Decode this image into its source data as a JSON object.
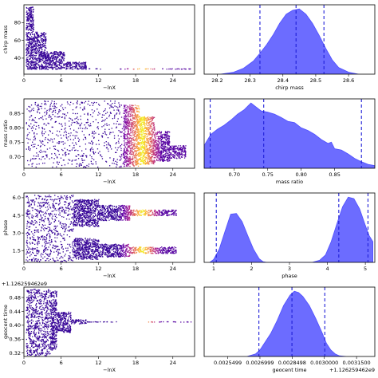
{
  "chart_data": [
    {
      "type": "scatter",
      "row": 0,
      "col": 0,
      "xlabel": "−lnX",
      "ylabel": "chirp mass",
      "xlim": [
        0,
        27.5
      ],
      "ylim": [
        22,
        100
      ],
      "xticks": [
        0,
        6,
        12,
        18,
        24
      ],
      "yticks": [
        40,
        60,
        80
      ],
      "ytick_labels": [
        "40",
        "60",
        "80"
      ],
      "offset_text": "",
      "trace": {
        "bands": [
          {
            "x0": 0.3,
            "x1": 1.5,
            "y0": 28,
            "y1": 98
          },
          {
            "x0": 1.5,
            "x1": 3.5,
            "y0": 28,
            "y1": 70
          },
          {
            "x0": 3.5,
            "x1": 6.5,
            "y0": 28,
            "y1": 48
          },
          {
            "x0": 6.5,
            "x1": 10,
            "y0": 28,
            "y1": 36
          },
          {
            "x0": 10,
            "x1": 27,
            "y0": 28.2,
            "y1": 28.7
          }
        ]
      }
    },
    {
      "type": "area",
      "row": 0,
      "col": 1,
      "xlabel": "chirp mass",
      "ylabel": "",
      "xlim": [
        28.16,
        28.68
      ],
      "xticks": [
        28.2,
        28.3,
        28.4,
        28.5,
        28.6
      ],
      "xtick_labels": [
        "28.2",
        "28.3",
        "28.4",
        "28.5",
        "28.6"
      ],
      "offset_text": "",
      "kde": {
        "x": [
          28.21,
          28.25,
          28.28,
          28.31,
          28.33,
          28.35,
          28.37,
          28.39,
          28.41,
          28.43,
          28.45,
          28.47,
          28.49,
          28.51,
          28.53,
          28.55,
          28.57,
          28.6,
          28.63
        ],
        "y": [
          0.0,
          0.03,
          0.09,
          0.2,
          0.32,
          0.45,
          0.6,
          0.78,
          0.92,
          0.98,
          1.0,
          0.92,
          0.78,
          0.6,
          0.4,
          0.22,
          0.1,
          0.03,
          0.0
        ]
      },
      "quantiles": [
        28.33,
        28.44,
        28.525
      ]
    },
    {
      "type": "scatter",
      "row": 1,
      "col": 0,
      "xlabel": "−lnX",
      "ylabel": "mass ratio",
      "xlim": [
        0,
        27.5
      ],
      "ylim": [
        0.66,
        0.9
      ],
      "xticks": [
        0,
        6,
        12,
        18,
        24
      ],
      "yticks": [
        0.7,
        0.75,
        0.8,
        0.85
      ],
      "ytick_labels": [
        "0.70",
        "0.75",
        "0.80",
        "0.85"
      ],
      "offset_text": "",
      "trace": {
        "bands": [
          {
            "x0": 0.3,
            "x1": 16,
            "y0": 0.665,
            "y1": 0.895
          },
          {
            "x0": 16,
            "x1": 18.5,
            "y0": 0.668,
            "y1": 0.88
          },
          {
            "x0": 18.5,
            "x1": 21,
            "y0": 0.675,
            "y1": 0.84
          },
          {
            "x0": 21,
            "x1": 23.5,
            "y0": 0.685,
            "y1": 0.79
          },
          {
            "x0": 23.5,
            "x1": 26,
            "y0": 0.695,
            "y1": 0.74
          }
        ]
      }
    },
    {
      "type": "area",
      "row": 1,
      "col": 1,
      "xlabel": "mass ratio",
      "ylabel": "",
      "xlim": [
        0.655,
        0.91
      ],
      "xticks": [
        0.7,
        0.75,
        0.8,
        0.85
      ],
      "xtick_labels": [
        "0.70",
        "0.75",
        "0.80",
        "0.85"
      ],
      "offset_text": "",
      "kde": {
        "x": [
          0.655,
          0.665,
          0.675,
          0.685,
          0.695,
          0.705,
          0.715,
          0.72,
          0.725,
          0.73,
          0.74,
          0.75,
          0.76,
          0.77,
          0.78,
          0.79,
          0.8,
          0.81,
          0.82,
          0.83,
          0.84,
          0.845,
          0.85,
          0.86,
          0.87,
          0.88,
          0.89,
          0.9,
          0.91
        ],
        "y": [
          0.35,
          0.52,
          0.6,
          0.66,
          0.74,
          0.83,
          0.9,
          0.95,
          1.0,
          0.96,
          0.88,
          0.86,
          0.83,
          0.78,
          0.72,
          0.7,
          0.62,
          0.58,
          0.52,
          0.44,
          0.38,
          0.4,
          0.3,
          0.28,
          0.22,
          0.15,
          0.1,
          0.06,
          0.04
        ]
      },
      "quantiles": [
        0.664,
        0.744,
        0.89
      ]
    },
    {
      "type": "scatter",
      "row": 2,
      "col": 0,
      "xlabel": "−lnX",
      "ylabel": "phase",
      "xlim": [
        0,
        27.5
      ],
      "ylim": [
        0.5,
        6.4
      ],
      "xticks": [
        0,
        6,
        12,
        18,
        24
      ],
      "yticks": [
        1.5,
        3.0,
        4.5,
        6.0
      ],
      "ytick_labels": [
        "1.5",
        "3.0",
        "4.5",
        "6.0"
      ],
      "offset_text": "",
      "trace": {
        "bands": [
          {
            "x0": 0.3,
            "x1": 8,
            "y0": 0.6,
            "y1": 6.25
          },
          {
            "x0": 8,
            "x1": 12,
            "y0": 0.8,
            "y1": 2.6
          },
          {
            "x0": 8,
            "x1": 12,
            "y0": 3.6,
            "y1": 5.9
          },
          {
            "x0": 12,
            "x1": 17,
            "y0": 1.0,
            "y1": 2.1
          },
          {
            "x0": 12,
            "x1": 17,
            "y0": 4.1,
            "y1": 5.4
          },
          {
            "x0": 17,
            "x1": 24.5,
            "y0": 1.3,
            "y1": 1.85
          },
          {
            "x0": 17,
            "x1": 24.5,
            "y0": 4.5,
            "y1": 5.0
          }
        ]
      }
    },
    {
      "type": "area",
      "row": 2,
      "col": 1,
      "xlabel": "phase",
      "ylabel": "",
      "xlim": [
        0.75,
        5.25
      ],
      "xticks": [
        1,
        2,
        3,
        4,
        5
      ],
      "xtick_labels": [
        "1",
        "2",
        "3",
        "4",
        "5"
      ],
      "offset_text": "",
      "kde": {
        "x": [
          0.9,
          1.0,
          1.15,
          1.3,
          1.45,
          1.6,
          1.75,
          1.9,
          2.05,
          2.2,
          2.3,
          2.4,
          3.6,
          3.8,
          3.95,
          4.1,
          4.25,
          4.4,
          4.55,
          4.7,
          4.85,
          5.0,
          5.1,
          5.2
        ],
        "y": [
          0.0,
          0.04,
          0.18,
          0.42,
          0.65,
          0.66,
          0.55,
          0.36,
          0.18,
          0.05,
          0.01,
          0.0,
          0.0,
          0.03,
          0.1,
          0.28,
          0.52,
          0.75,
          0.88,
          0.86,
          0.72,
          0.5,
          0.36,
          0.28
        ]
      },
      "quantiles": [
        1.07,
        4.3,
        5.07
      ]
    },
    {
      "type": "scatter",
      "row": 3,
      "col": 0,
      "xlabel": "−lnX",
      "ylabel": "geocent time",
      "xlim": [
        0,
        27.5
      ],
      "ylim": [
        0.31,
        0.51
      ],
      "xticks": [
        0,
        6,
        12,
        18,
        24
      ],
      "yticks": [
        0.32,
        0.36,
        0.4,
        0.44,
        0.48
      ],
      "ytick_labels": [
        "0.32",
        "0.36",
        "0.40",
        "0.44",
        "0.48"
      ],
      "offset_text": "+1.126259462e9",
      "trace": {
        "bands": [
          {
            "x0": 0.3,
            "x1": 4.2,
            "y0": 0.312,
            "y1": 0.505
          },
          {
            "x0": 4.2,
            "x1": 5.2,
            "y0": 0.33,
            "y1": 0.5
          },
          {
            "x0": 5.2,
            "x1": 7.5,
            "y0": 0.38,
            "y1": 0.44
          },
          {
            "x0": 7.5,
            "x1": 10,
            "y0": 0.405,
            "y1": 0.418
          },
          {
            "x0": 10,
            "x1": 27,
            "y0": 0.4105,
            "y1": 0.4115
          }
        ]
      }
    },
    {
      "type": "area",
      "row": 3,
      "col": 1,
      "xlabel": "geocent time",
      "ylabel": "",
      "xlim": [
        0.00244,
        0.003235
      ],
      "xticks": [
        0.0025499,
        0.0026999,
        0.0028498,
        0.003,
        0.00315
      ],
      "xtick_labels": [
        "0.0025499",
        "0.0026999",
        "0.0028498",
        "0.0030000",
        "0.0031500"
      ],
      "offset_text": "+1.126259462e9",
      "kde": {
        "x": [
          0.00264,
          0.00268,
          0.0027,
          0.00272,
          0.00275,
          0.00278,
          0.00281,
          0.00284,
          0.00286,
          0.00288,
          0.0029,
          0.00293,
          0.00296,
          0.00299,
          0.00301,
          0.00303,
          0.00305,
          0.00307,
          0.0031
        ],
        "y": [
          0.0,
          0.04,
          0.1,
          0.2,
          0.35,
          0.55,
          0.78,
          0.94,
          1.0,
          0.98,
          0.92,
          0.78,
          0.58,
          0.36,
          0.2,
          0.1,
          0.04,
          0.01,
          0.0
        ]
      },
      "quantiles": [
        0.002695,
        0.002849,
        0.003002
      ]
    }
  ]
}
